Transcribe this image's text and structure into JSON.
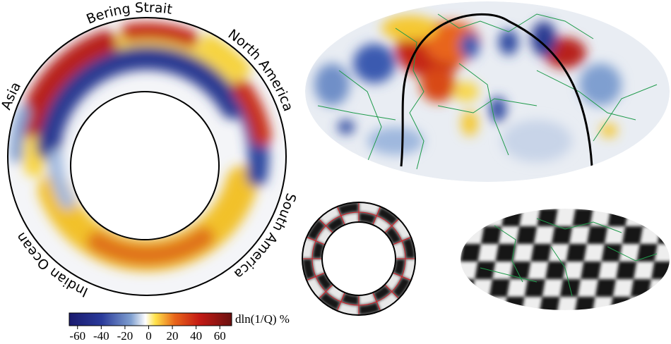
{
  "cross_section": {
    "labels": [
      "Asia",
      "Bering Strait",
      "North America",
      "South America",
      "Indian Ocean"
    ]
  },
  "colorbar": {
    "label": "dln(1/Q) %",
    "lim": [
      -67,
      70
    ],
    "ticks": [
      -60,
      -40,
      -20,
      0,
      20,
      40,
      60
    ]
  }
}
